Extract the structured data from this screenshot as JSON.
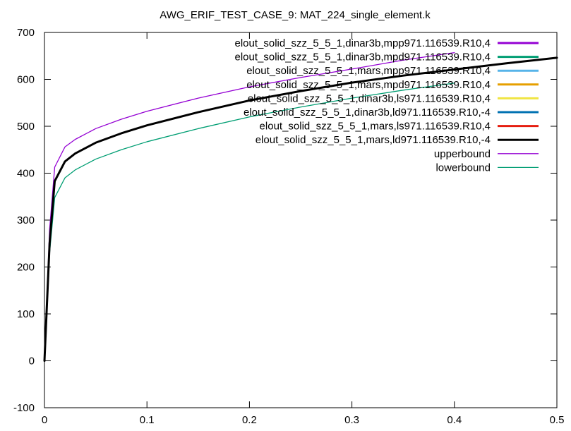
{
  "chart_data": {
    "type": "line",
    "title": "AWG_ERIF_TEST_CASE_9: MAT_224_single_element.k",
    "xlabel": "",
    "ylabel": "",
    "xlim": [
      0,
      0.5
    ],
    "ylim": [
      -100,
      700
    ],
    "x_ticks": [
      0,
      0.1,
      0.2,
      0.3,
      0.4,
      0.5
    ],
    "x_tick_labels": [
      "0",
      "0.1",
      "0.2",
      "0.3",
      "0.4",
      "0.5"
    ],
    "y_ticks": [
      -100,
      0,
      100,
      200,
      300,
      400,
      500,
      600,
      700
    ],
    "y_tick_labels": [
      "-100",
      "0",
      "100",
      "200",
      "300",
      "400",
      "500",
      "600",
      "700"
    ],
    "grid": false,
    "legend_position": "top-right",
    "series": [
      {
        "name": "elout_solid_szz_5_5_1,dinar3b,mpp971.116539.R10,4",
        "color": "#9400d3",
        "width": 3,
        "x": [],
        "y": []
      },
      {
        "name": "elout_solid_szz_5_5_1,dinar3b,mpd971.116539.R10,4",
        "color": "#009e73",
        "width": 3,
        "x": [],
        "y": []
      },
      {
        "name": "elout_solid_szz_5_5_1,mars,mpp971.116539.R10,4",
        "color": "#56b4e9",
        "width": 3,
        "x": [],
        "y": []
      },
      {
        "name": "elout_solid_szz_5_5_1,mars,mpd971.116539.R10,4",
        "color": "#e69f00",
        "width": 3,
        "x": [],
        "y": []
      },
      {
        "name": "elout_solid_szz_5_5_1,dinar3b,ls971.116539.R10,4",
        "color": "#f0e442",
        "width": 3,
        "x": [],
        "y": []
      },
      {
        "name": "elout_solid_szz_5_5_1,dinar3b,ld971.116539.R10,-4",
        "color": "#0072b2",
        "width": 3,
        "x": [],
        "y": []
      },
      {
        "name": "elout_solid_szz_5_5_1,mars,ls971.116539.R10,4",
        "color": "#e51e10",
        "width": 3,
        "x": [],
        "y": []
      },
      {
        "name": "elout_solid_szz_5_5_1,mars,ld971.116539.R10,-4",
        "color": "#000000",
        "width": 3,
        "x": [
          0,
          0.005,
          0.01,
          0.02,
          0.03,
          0.05,
          0.075,
          0.1,
          0.15,
          0.2,
          0.25,
          0.3,
          0.35,
          0.4,
          0.45,
          0.5
        ],
        "y": [
          0,
          250,
          383,
          425,
          442,
          465,
          485,
          502,
          530,
          555,
          575,
          593,
          608,
          621,
          634,
          646
        ]
      },
      {
        "name": "upperbound",
        "color": "#9400d3",
        "width": 1.3,
        "x": [
          0,
          0.005,
          0.01,
          0.02,
          0.03,
          0.05,
          0.075,
          0.1,
          0.15,
          0.2,
          0.25,
          0.3,
          0.35,
          0.4
        ],
        "y": [
          0,
          280,
          413,
          456,
          472,
          495,
          515,
          532,
          560,
          584,
          604,
          622,
          641,
          657
        ]
      },
      {
        "name": "lowerbound",
        "color": "#009e73",
        "width": 1.3,
        "x": [
          0,
          0.005,
          0.01,
          0.02,
          0.03,
          0.05,
          0.075,
          0.1,
          0.15,
          0.2,
          0.25,
          0.3,
          0.35,
          0.4
        ],
        "y": [
          0,
          230,
          348,
          390,
          407,
          430,
          450,
          467,
          495,
          520,
          541,
          560,
          577,
          592
        ]
      }
    ]
  }
}
